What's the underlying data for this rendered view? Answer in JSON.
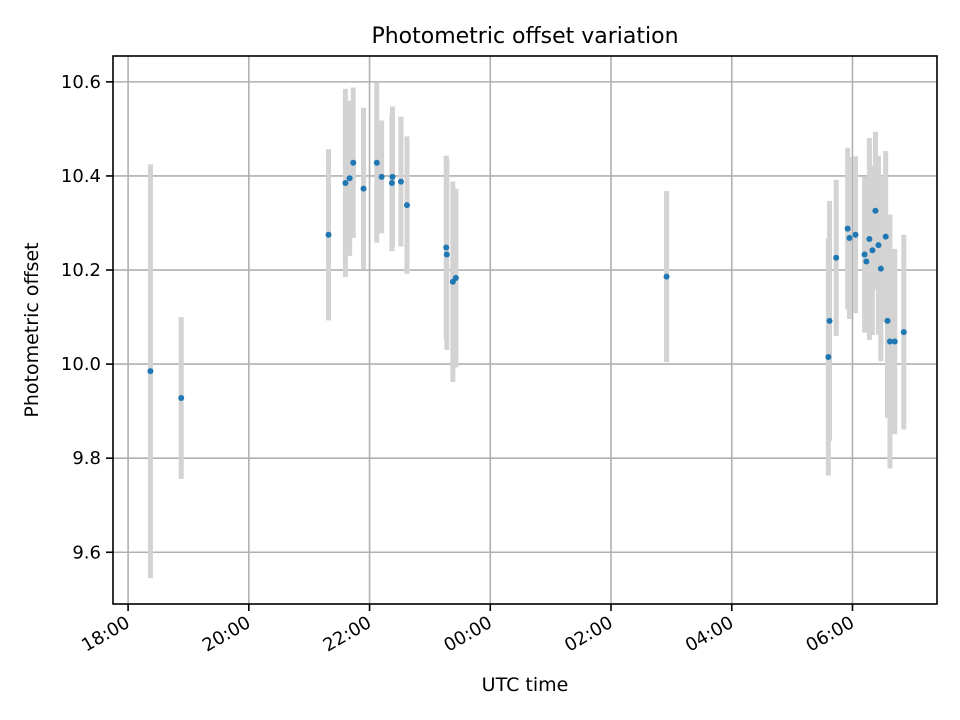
{
  "chart_data": {
    "type": "scatter",
    "title": "Photometric offset variation",
    "xlabel": "UTC time",
    "ylabel": "Photometric offset",
    "x_unit": "hour",
    "x_tick_labels": [
      "18:00",
      "20:00",
      "22:00",
      "00:00",
      "02:00",
      "04:00",
      "06:00"
    ],
    "x_tick_values": [
      18,
      20,
      22,
      24,
      26,
      28,
      30
    ],
    "xlim": [
      17.75,
      31.4
    ],
    "ylim": [
      9.49,
      10.655
    ],
    "y_ticks": [
      9.6,
      9.8,
      10.0,
      10.2,
      10.4,
      10.6
    ],
    "y_tick_labels": [
      "9.6",
      "9.8",
      "10.0",
      "10.2",
      "10.4",
      "10.6"
    ],
    "grid": true,
    "marker_color": "#1f77b4",
    "errorbar_color": "#d3d3d3",
    "points": [
      {
        "x": 18.37,
        "y": 9.985,
        "err": 0.44
      },
      {
        "x": 18.88,
        "y": 9.928,
        "err": 0.172
      },
      {
        "x": 21.32,
        "y": 10.275,
        "err": 0.182
      },
      {
        "x": 21.6,
        "y": 10.385,
        "err": 0.2
      },
      {
        "x": 21.67,
        "y": 10.395,
        "err": 0.165
      },
      {
        "x": 21.73,
        "y": 10.428,
        "err": 0.16
      },
      {
        "x": 21.9,
        "y": 10.373,
        "err": 0.172
      },
      {
        "x": 22.12,
        "y": 10.428,
        "err": 0.17
      },
      {
        "x": 22.2,
        "y": 10.398,
        "err": 0.12
      },
      {
        "x": 22.37,
        "y": 10.385,
        "err": 0.145
      },
      {
        "x": 22.38,
        "y": 10.398,
        "err": 0.15
      },
      {
        "x": 22.52,
        "y": 10.388,
        "err": 0.138
      },
      {
        "x": 22.62,
        "y": 10.338,
        "err": 0.146
      },
      {
        "x": 23.27,
        "y": 10.248,
        "err": 0.195
      },
      {
        "x": 23.28,
        "y": 10.233,
        "err": 0.203
      },
      {
        "x": 23.38,
        "y": 10.175,
        "err": 0.213
      },
      {
        "x": 23.43,
        "y": 10.183,
        "err": 0.19
      },
      {
        "x": 26.92,
        "y": 10.186,
        "err": 0.182
      },
      {
        "x": 29.6,
        "y": 10.015,
        "err": 0.252
      },
      {
        "x": 29.62,
        "y": 10.092,
        "err": 0.255
      },
      {
        "x": 29.73,
        "y": 10.226,
        "err": 0.166
      },
      {
        "x": 29.92,
        "y": 10.288,
        "err": 0.172
      },
      {
        "x": 29.95,
        "y": 10.268,
        "err": 0.172
      },
      {
        "x": 30.05,
        "y": 10.275,
        "err": 0.167
      },
      {
        "x": 30.2,
        "y": 10.233,
        "err": 0.166
      },
      {
        "x": 30.23,
        "y": 10.218,
        "err": 0.15
      },
      {
        "x": 30.28,
        "y": 10.266,
        "err": 0.215
      },
      {
        "x": 30.33,
        "y": 10.242,
        "err": 0.18
      },
      {
        "x": 30.38,
        "y": 10.326,
        "err": 0.168
      },
      {
        "x": 30.43,
        "y": 10.253,
        "err": 0.19
      },
      {
        "x": 30.47,
        "y": 10.203,
        "err": 0.197
      },
      {
        "x": 30.55,
        "y": 10.271,
        "err": 0.182
      },
      {
        "x": 30.58,
        "y": 10.092,
        "err": 0.206
      },
      {
        "x": 30.62,
        "y": 10.048,
        "err": 0.27
      },
      {
        "x": 30.7,
        "y": 10.048,
        "err": 0.197
      },
      {
        "x": 30.85,
        "y": 10.068,
        "err": 0.207
      }
    ]
  }
}
